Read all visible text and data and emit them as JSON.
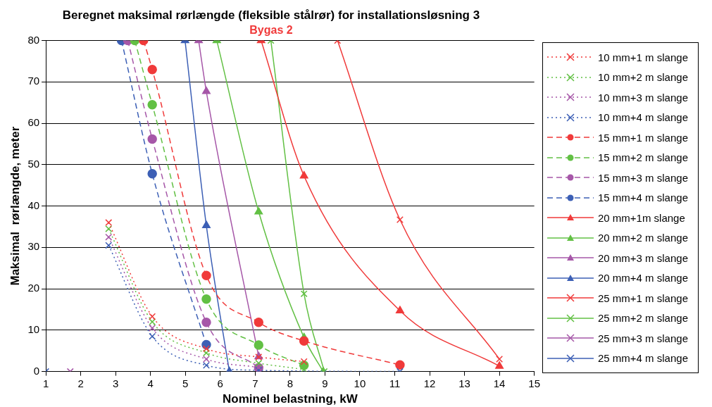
{
  "chart_data": {
    "type": "line",
    "title": "Beregnet maksimal rørlængde (fleksible stålrør) for installationsløsning 3",
    "subtitle": "Bygas 2",
    "xlabel": "Nominel belastning, kW",
    "ylabel": "Maksimal  rørlængde, meter",
    "xlim": [
      1,
      15
    ],
    "xticks": [
      1,
      2,
      3,
      4,
      5,
      6,
      7,
      8,
      9,
      10,
      11,
      12,
      13,
      14,
      15
    ],
    "ylim": [
      0,
      80
    ],
    "yticks": [
      0,
      10,
      20,
      30,
      40,
      50,
      60,
      70,
      80
    ],
    "grid": "y",
    "legend": "right",
    "series": [
      {
        "name": "10 mm+1 m slange",
        "color": "#f03a3a",
        "marker": "cross",
        "line_style": "dotted",
        "x": [
          2.8,
          4.05,
          5.6,
          7.1,
          8.4
        ],
        "values": [
          36,
          13.3,
          5.5,
          3.5,
          2.4
        ]
      },
      {
        "name": "10 mm+2 m slange",
        "color": "#62c044",
        "marker": "cross",
        "line_style": "dotted",
        "x": [
          2.8,
          4.05,
          5.6,
          7.1,
          8.4
        ],
        "values": [
          34.5,
          12,
          4.5,
          2,
          0.5
        ]
      },
      {
        "name": "10 mm+3 m slange",
        "color": "#a657a8",
        "marker": "cross",
        "line_style": "dotted",
        "x": [
          2.8,
          4.05,
          5.6,
          7.1
        ],
        "values": [
          32.5,
          10.5,
          3,
          1
        ]
      },
      {
        "name": "10 mm+4 m slange",
        "color": "#3c5fb5",
        "marker": "cross",
        "line_style": "dotted",
        "x": [
          2.8,
          4.05,
          5.6,
          7.1,
          11.15
        ],
        "values": [
          30.5,
          8.5,
          1.5,
          0.3,
          0
        ]
      },
      {
        "name": "15 mm+1 m slange",
        "color": "#f03a3a",
        "marker": "circle",
        "line_style": "dashed",
        "x": [
          3.8,
          4.05,
          5.6,
          7.1,
          8.4,
          11.15
        ],
        "values": [
          80,
          73,
          23.2,
          11.9,
          7.4,
          1.6
        ]
      },
      {
        "name": "15 mm+2 m slange",
        "color": "#62c044",
        "marker": "circle",
        "line_style": "dashed",
        "x": [
          3.55,
          4.05,
          5.6,
          7.1,
          8.4
        ],
        "values": [
          80,
          64.5,
          17.5,
          6.4,
          1.5
        ]
      },
      {
        "name": "15 mm+3 m slange",
        "color": "#a657a8",
        "marker": "circle",
        "line_style": "dashed",
        "x": [
          3.35,
          4.05,
          5.6,
          7.1
        ],
        "values": [
          80,
          56.2,
          11.9,
          0.9
        ]
      },
      {
        "name": "15 mm+4 m slange",
        "color": "#3c5fb5",
        "marker": "circle",
        "line_style": "dashed",
        "x": [
          3.17,
          4.05,
          5.6
        ],
        "values": [
          80,
          47.8,
          6.5
        ]
      },
      {
        "name": "20 mm+1m slange",
        "color": "#f03a3a",
        "marker": "triangle",
        "line_style": "solid",
        "x": [
          7.17,
          8.4,
          11.15,
          14
        ],
        "values": [
          80,
          47.3,
          14.7,
          1.3
        ]
      },
      {
        "name": "20 mm+2 m slange",
        "color": "#62c044",
        "marker": "triangle",
        "line_style": "solid",
        "x": [
          5.9,
          7.1,
          8.4,
          8.95
        ],
        "values": [
          80,
          38.6,
          8.2,
          0
        ]
      },
      {
        "name": "20 mm+3 m slange",
        "color": "#a657a8",
        "marker": "triangle",
        "line_style": "solid",
        "x": [
          5.38,
          5.6,
          7.1
        ],
        "values": [
          80,
          67.7,
          3.6
        ]
      },
      {
        "name": "20 mm+4 m slange",
        "color": "#3c5fb5",
        "marker": "triangle",
        "line_style": "solid",
        "x": [
          4.99,
          5.6,
          6.26
        ],
        "values": [
          80,
          35.3,
          0
        ]
      },
      {
        "name": "25 mm+1 m slange",
        "color": "#f03a3a",
        "marker": "cross",
        "line_style": "solid",
        "x": [
          9.36,
          11.15,
          14
        ],
        "values": [
          80,
          36.7,
          3
        ]
      },
      {
        "name": "25 mm+2 m slange",
        "color": "#62c044",
        "marker": "cross",
        "line_style": "solid",
        "x": [
          7.45,
          8.4,
          8.98
        ],
        "values": [
          80,
          18.8,
          0
        ]
      },
      {
        "name": "25 mm+3 m slange",
        "color": "#a657a8",
        "marker": "cross",
        "line_style": "solid",
        "x": [
          1.7
        ],
        "values": [
          0
        ]
      },
      {
        "name": "25 mm+4 m slange",
        "color": "#3c5fb5",
        "marker": "cross",
        "line_style": "solid",
        "x": [
          1
        ],
        "values": [
          0
        ]
      }
    ]
  }
}
